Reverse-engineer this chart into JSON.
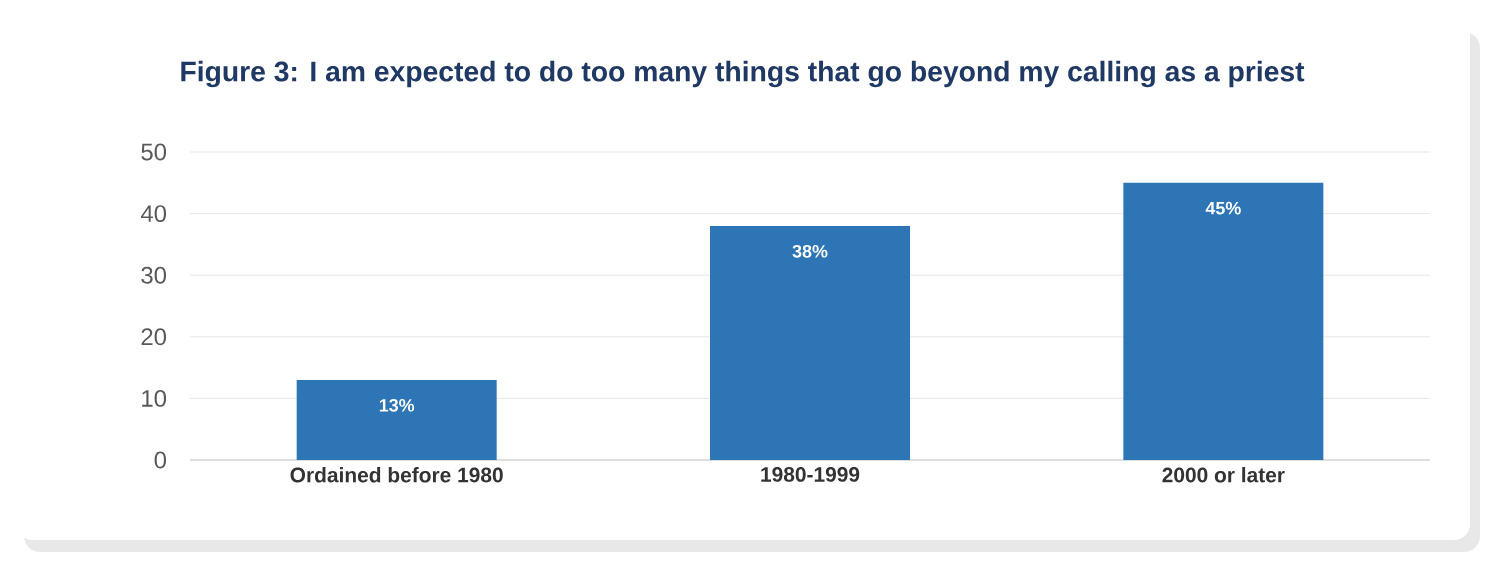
{
  "chart_data": {
    "type": "bar",
    "title": "Figure 3:  I am expected to do too many things that go beyond my calling as a priest",
    "categories": [
      "Ordained before 1980",
      "1980-1999",
      "2000 or later"
    ],
    "values": [
      13,
      38,
      45
    ],
    "value_labels": [
      "13%",
      "38%",
      "45%"
    ],
    "color": "#2e75b6",
    "ylim": [
      0,
      50
    ],
    "yticks": [
      0,
      10,
      20,
      30,
      40,
      50
    ],
    "grid": "y"
  }
}
